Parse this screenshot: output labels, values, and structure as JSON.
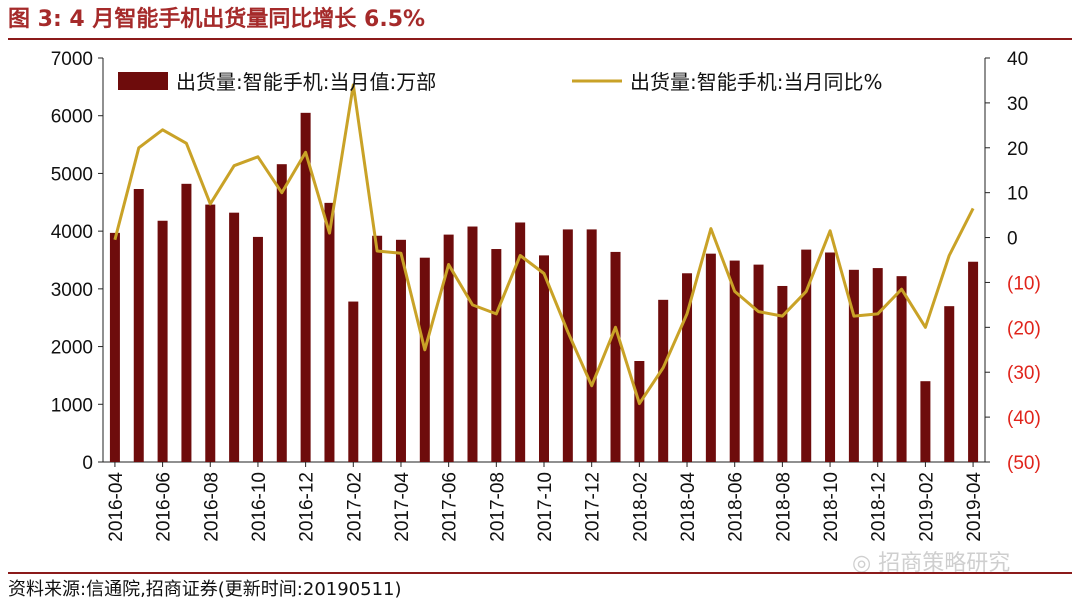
{
  "title": "图 3:  4 月智能手机出货量同比增长 6.5%",
  "source": "资料来源:信通院,招商证券(更新时间:20190511)",
  "watermark": "招商策略研究",
  "colors": {
    "bar": "#6e0c0c",
    "line": "#c9a227",
    "negative_label": "#e0241b",
    "frame": "#8b1a1a"
  },
  "chart_data": {
    "type": "bar",
    "x": [
      "2016-04",
      "2016-05",
      "2016-06",
      "2016-07",
      "2016-08",
      "2016-09",
      "2016-10",
      "2016-11",
      "2016-12",
      "2017-01",
      "2017-02",
      "2017-03",
      "2017-04",
      "2017-05",
      "2017-06",
      "2017-07",
      "2017-08",
      "2017-09",
      "2017-10",
      "2017-11",
      "2017-12",
      "2018-01",
      "2018-02",
      "2018-03",
      "2018-04",
      "2018-05",
      "2018-06",
      "2018-07",
      "2018-08",
      "2018-09",
      "2018-10",
      "2018-11",
      "2018-12",
      "2019-01",
      "2019-02",
      "2019-03",
      "2019-04"
    ],
    "x_tick_labels": [
      "2016-04",
      "2016-06",
      "2016-08",
      "2016-10",
      "2016-12",
      "2017-02",
      "2017-04",
      "2017-06",
      "2017-08",
      "2017-10",
      "2017-12",
      "2018-02",
      "2018-04",
      "2018-06",
      "2018-08",
      "2018-10",
      "2018-12",
      "2019-02",
      "2019-04"
    ],
    "series": [
      {
        "name": "出货量:智能手机:当月值:万部",
        "type": "bar",
        "axis": "left",
        "values": [
          3970,
          4730,
          4180,
          4820,
          4460,
          4320,
          3900,
          5160,
          6050,
          4490,
          2780,
          3920,
          3850,
          3540,
          3940,
          4080,
          3690,
          4150,
          3580,
          4030,
          4030,
          3640,
          1750,
          2810,
          3270,
          3610,
          3490,
          3420,
          3050,
          3680,
          3630,
          3330,
          3360,
          3220,
          1400,
          2700,
          3470
        ]
      },
      {
        "name": "出货量:智能手机:当月同比%",
        "type": "line",
        "axis": "right",
        "values": [
          -0.5,
          20,
          24,
          21,
          7.5,
          16,
          18,
          10,
          19,
          1,
          34,
          -3,
          -3.5,
          -25,
          -6,
          -15,
          -17,
          -4,
          -8,
          -21,
          -33,
          -20,
          -37,
          -29,
          -17,
          2,
          -12,
          -16.5,
          -17.5,
          -12,
          1.5,
          -17.5,
          -17,
          -11.5,
          -20,
          -4,
          6.5
        ]
      }
    ],
    "y_left": {
      "min": 0,
      "max": 7000,
      "ticks": [
        "0",
        "1000",
        "2000",
        "3000",
        "4000",
        "5000",
        "6000",
        "7000"
      ]
    },
    "y_right": {
      "min": -50,
      "max": 40,
      "ticks": [
        "(50)",
        "(40)",
        "(30)",
        "(20)",
        "(10)",
        "0",
        "10",
        "20",
        "30",
        "40"
      ]
    },
    "legend": "top",
    "grid": false
  }
}
